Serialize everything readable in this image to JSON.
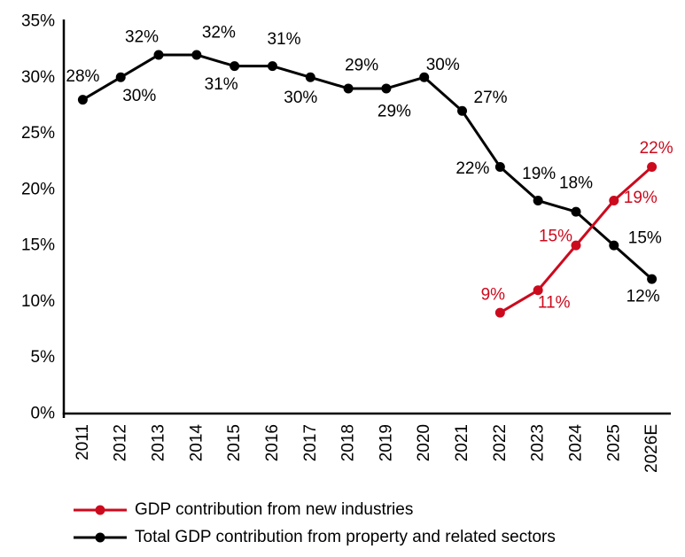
{
  "chart_data": {
    "type": "line",
    "title": "",
    "xlabel": "",
    "ylabel": "",
    "categories": [
      "2011",
      "2012",
      "2013",
      "2014",
      "2015",
      "2016",
      "2017",
      "2018",
      "2019",
      "2020",
      "2021",
      "2022",
      "2023",
      "2024",
      "2025",
      "2026E"
    ],
    "ylim": [
      0,
      35
    ],
    "yticks": [
      0,
      5,
      10,
      15,
      20,
      25,
      30,
      35
    ],
    "ytick_labels": [
      "0%",
      "5%",
      "10%",
      "15%",
      "20%",
      "25%",
      "30%",
      "35%"
    ],
    "grid": false,
    "legend_position": "bottom-left",
    "axis_color": "#000000",
    "text_color": "#000000",
    "series": [
      {
        "name": "GDP contribution from new industries",
        "color": "#cc0a1e",
        "values": [
          null,
          null,
          null,
          null,
          null,
          null,
          null,
          null,
          null,
          null,
          null,
          9,
          11,
          15,
          19,
          22
        ],
        "point_labels": [
          null,
          null,
          null,
          null,
          null,
          null,
          null,
          null,
          null,
          null,
          null,
          "9%",
          "11%",
          "15%",
          "19%",
          "22%"
        ],
        "label_offsets": [
          null,
          null,
          null,
          null,
          null,
          null,
          null,
          null,
          null,
          null,
          null,
          [
            -8,
            -20
          ],
          [
            18,
            14
          ],
          [
            -23,
            -10
          ],
          [
            30,
            -3
          ],
          [
            5,
            -21
          ]
        ]
      },
      {
        "name": "Total GDP contribution from property and related sectors",
        "color": "#000000",
        "values": [
          28,
          30,
          32,
          32,
          31,
          31,
          30,
          29,
          29,
          30,
          27,
          22,
          19,
          18,
          15,
          12
        ],
        "point_labels": [
          "28%",
          "30%",
          "32%",
          "32%",
          "31%",
          "31%",
          "30%",
          "29%",
          "29%",
          "30%",
          "27%",
          "22%",
          "19%",
          "18%",
          "15%",
          "12%"
        ],
        "label_offsets": [
          [
            0,
            -26
          ],
          [
            21,
            21
          ],
          [
            -19,
            -20
          ],
          [
            25,
            -25
          ],
          [
            -15,
            21
          ],
          [
            13,
            -30
          ],
          [
            -11,
            23
          ],
          [
            15,
            -26
          ],
          [
            9,
            26
          ],
          [
            21,
            -14
          ],
          [
            32,
            -15
          ],
          [
            -31,
            2
          ],
          [
            1,
            -30
          ],
          [
            0,
            -32
          ],
          [
            35,
            -8
          ],
          [
            -10,
            20
          ]
        ]
      }
    ]
  }
}
